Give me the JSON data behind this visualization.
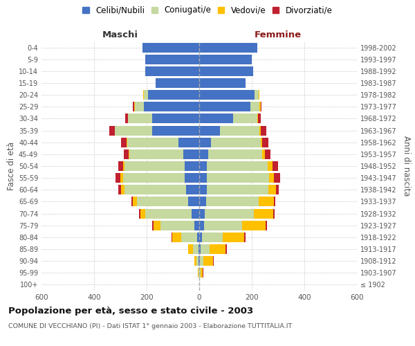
{
  "age_groups": [
    "100+",
    "95-99",
    "90-94",
    "85-89",
    "80-84",
    "75-79",
    "70-74",
    "65-69",
    "60-64",
    "55-59",
    "50-54",
    "45-49",
    "40-44",
    "35-39",
    "30-34",
    "25-29",
    "20-24",
    "15-19",
    "10-14",
    "5-9",
    "0-4"
  ],
  "birth_years": [
    "≤ 1902",
    "1903-1907",
    "1908-1912",
    "1913-1917",
    "1918-1922",
    "1923-1927",
    "1928-1932",
    "1933-1937",
    "1938-1942",
    "1943-1947",
    "1948-1952",
    "1953-1957",
    "1958-1962",
    "1963-1967",
    "1968-1972",
    "1973-1977",
    "1978-1982",
    "1983-1987",
    "1988-1992",
    "1993-1997",
    "1998-2002"
  ],
  "colors": {
    "celibe": "#4472c4",
    "coniugato": "#c5d9a0",
    "vedovo": "#ffc000",
    "divorziato": "#c0202f"
  },
  "maschi": {
    "celibe": [
      0,
      0,
      2,
      3,
      8,
      18,
      30,
      42,
      50,
      55,
      55,
      60,
      80,
      180,
      180,
      210,
      195,
      165,
      205,
      205,
      215
    ],
    "coniugato": [
      0,
      2,
      8,
      20,
      60,
      130,
      175,
      195,
      235,
      235,
      230,
      205,
      195,
      140,
      90,
      35,
      15,
      2,
      0,
      0,
      0
    ],
    "vedovo": [
      0,
      2,
      8,
      20,
      35,
      25,
      20,
      15,
      12,
      10,
      5,
      3,
      2,
      2,
      2,
      2,
      2,
      0,
      0,
      0,
      0
    ],
    "divorziato": [
      0,
      0,
      0,
      0,
      2,
      5,
      5,
      5,
      10,
      18,
      18,
      18,
      20,
      20,
      10,
      5,
      2,
      0,
      0,
      0,
      0
    ]
  },
  "femmine": {
    "celibe": [
      0,
      0,
      2,
      5,
      10,
      18,
      22,
      25,
      28,
      30,
      30,
      35,
      45,
      80,
      130,
      195,
      210,
      175,
      205,
      200,
      220
    ],
    "coniugato": [
      0,
      5,
      15,
      35,
      80,
      145,
      185,
      200,
      235,
      235,
      230,
      205,
      190,
      150,
      90,
      35,
      15,
      2,
      0,
      0,
      0
    ],
    "vedovo": [
      0,
      8,
      35,
      60,
      80,
      90,
      75,
      60,
      30,
      20,
      18,
      10,
      5,
      3,
      3,
      3,
      3,
      0,
      0,
      0,
      0
    ],
    "divorziato": [
      0,
      2,
      2,
      5,
      5,
      5,
      5,
      5,
      10,
      22,
      22,
      20,
      22,
      22,
      10,
      5,
      2,
      0,
      0,
      0,
      0
    ]
  },
  "title": "Popolazione per età, sesso e stato civile - 2003",
  "subtitle": "COMUNE DI VECCHIANO (PI) - Dati ISTAT 1° gennaio 2003 - Elaborazione TUTTITALIA.IT",
  "xlabel_maschi": "Maschi",
  "xlabel_femmine": "Femmine",
  "ylabel_left": "Fasce di età",
  "ylabel_right": "Anni di nascita",
  "xlim": 600,
  "legend_labels": [
    "Celibi/Nubili",
    "Coniugati/e",
    "Vedovi/e",
    "Divorziati/e"
  ],
  "bg_color": "#ffffff",
  "grid_color": "#cccccc"
}
